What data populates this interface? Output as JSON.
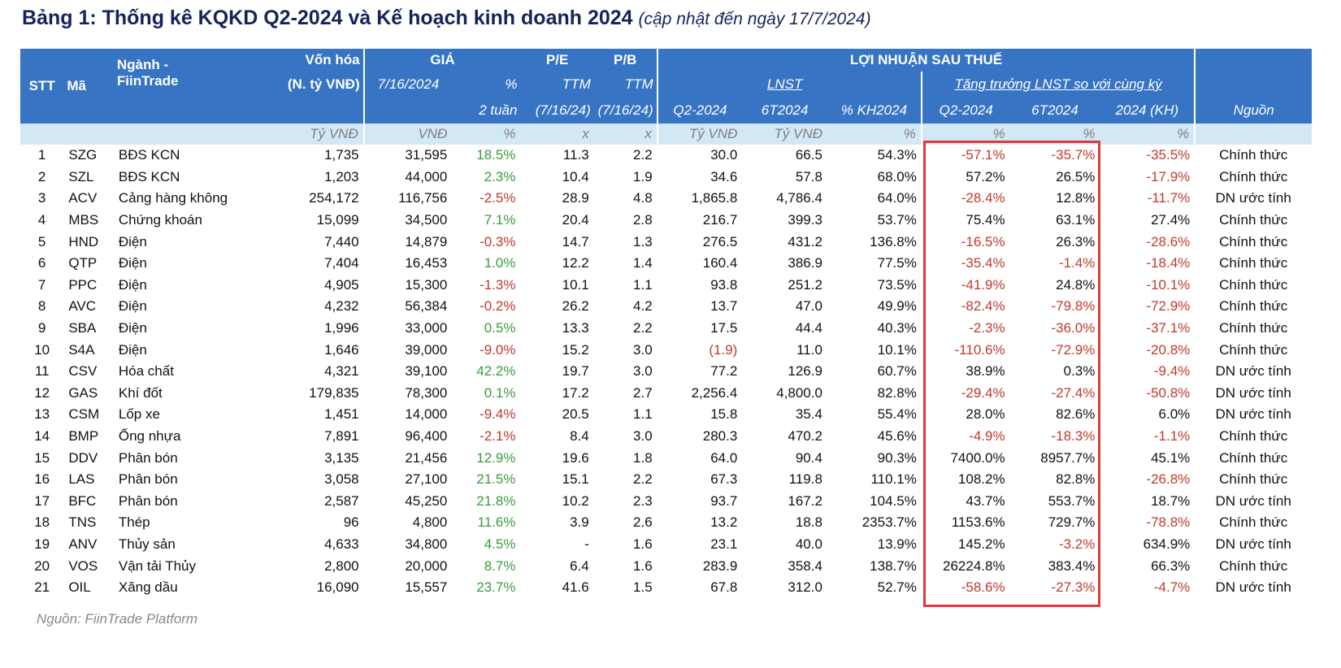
{
  "title": {
    "main": "Bảng 1: Thống kê KQKD Q2-2024 và Kế hoạch kinh doanh 2024",
    "sub": "(cập nhật đến ngày 17/7/2024)"
  },
  "headers": {
    "stt": "STT",
    "ma": "Mã",
    "nganh": "Ngành -",
    "nganh2": "FiinTrade",
    "vonhoa": "Vốn hóa",
    "vonhoa2": "(N. tỷ VNĐ)",
    "gia": "GIÁ",
    "gia_date": "7/16/2024",
    "gia_pct": "%",
    "gia_pct2": "2 tuần",
    "pe": "P/E",
    "pe_ttm": "TTM",
    "pe_date": "(7/16/24)",
    "pb": "P/B",
    "pb_ttm": "TTM",
    "pb_date": "(7/16/24)",
    "lnst_group": "LỢI NHUẬN SAU THUẾ",
    "lnst": "LNST",
    "growth": "Tăng trưởng LNST so với cùng kỳ",
    "q2": "Q2-2024",
    "h1": "6T2024",
    "kh": "% KH2024",
    "g_q2": "Q2-2024",
    "g_h1": "6T2024",
    "g_kh": "2024 (KH)",
    "nguon": "Nguồn"
  },
  "units": [
    "Tỷ VNĐ",
    "VNĐ",
    "%",
    "x",
    "x",
    "Tỷ VNĐ",
    "Tỷ VNĐ",
    "%",
    "%",
    "%",
    "%"
  ],
  "rows": [
    {
      "stt": "1",
      "ma": "SZG",
      "nganh": "BĐS KCN",
      "vonhoa": "1,735",
      "gia": "31,595",
      "pct": "18.5%",
      "pe": "11.3",
      "pb": "2.2",
      "q2": "30.0",
      "h1": "66.5",
      "kh": "54.3%",
      "gq2": "-57.1%",
      "gh1": "-35.7%",
      "gkh": "-35.5%",
      "nguon": "Chính thức"
    },
    {
      "stt": "2",
      "ma": "SZL",
      "nganh": "BĐS KCN",
      "vonhoa": "1,203",
      "gia": "44,000",
      "pct": "2.3%",
      "pe": "10.4",
      "pb": "1.9",
      "q2": "34.6",
      "h1": "57.8",
      "kh": "68.0%",
      "gq2": "57.2%",
      "gh1": "26.5%",
      "gkh": "-17.9%",
      "nguon": "Chính thức"
    },
    {
      "stt": "3",
      "ma": "ACV",
      "nganh": "Cảng hàng không",
      "vonhoa": "254,172",
      "gia": "116,756",
      "pct": "-2.5%",
      "pe": "28.9",
      "pb": "4.8",
      "q2": "1,865.8",
      "h1": "4,786.4",
      "kh": "64.0%",
      "gq2": "-28.4%",
      "gh1": "12.8%",
      "gkh": "-11.7%",
      "nguon": "DN ước tính"
    },
    {
      "stt": "4",
      "ma": "MBS",
      "nganh": "Chứng khoán",
      "vonhoa": "15,099",
      "gia": "34,500",
      "pct": "7.1%",
      "pe": "20.4",
      "pb": "2.8",
      "q2": "216.7",
      "h1": "399.3",
      "kh": "53.7%",
      "gq2": "75.4%",
      "gh1": "63.1%",
      "gkh": "27.4%",
      "nguon": "Chính thức"
    },
    {
      "stt": "5",
      "ma": "HND",
      "nganh": "Điện",
      "vonhoa": "7,440",
      "gia": "14,879",
      "pct": "-0.3%",
      "pe": "14.7",
      "pb": "1.3",
      "q2": "276.5",
      "h1": "431.2",
      "kh": "136.8%",
      "gq2": "-16.5%",
      "gh1": "26.3%",
      "gkh": "-28.6%",
      "nguon": "Chính thức"
    },
    {
      "stt": "6",
      "ma": "QTP",
      "nganh": "Điện",
      "vonhoa": "7,404",
      "gia": "16,453",
      "pct": "1.0%",
      "pe": "12.2",
      "pb": "1.4",
      "q2": "160.4",
      "h1": "386.9",
      "kh": "77.5%",
      "gq2": "-35.4%",
      "gh1": "-1.4%",
      "gkh": "-18.4%",
      "nguon": "Chính thức"
    },
    {
      "stt": "7",
      "ma": "PPC",
      "nganh": "Điện",
      "vonhoa": "4,905",
      "gia": "15,300",
      "pct": "-1.3%",
      "pe": "10.1",
      "pb": "1.1",
      "q2": "93.8",
      "h1": "251.2",
      "kh": "73.5%",
      "gq2": "-41.9%",
      "gh1": "24.8%",
      "gkh": "-10.1%",
      "nguon": "Chính thức"
    },
    {
      "stt": "8",
      "ma": "AVC",
      "nganh": "Điện",
      "vonhoa": "4,232",
      "gia": "56,384",
      "pct": "-0.2%",
      "pe": "26.2",
      "pb": "4.2",
      "q2": "13.7",
      "h1": "47.0",
      "kh": "49.9%",
      "gq2": "-82.4%",
      "gh1": "-79.8%",
      "gkh": "-72.9%",
      "nguon": "Chính thức"
    },
    {
      "stt": "9",
      "ma": "SBA",
      "nganh": "Điện",
      "vonhoa": "1,996",
      "gia": "33,000",
      "pct": "0.5%",
      "pe": "13.3",
      "pb": "2.2",
      "q2": "17.5",
      "h1": "44.4",
      "kh": "40.3%",
      "gq2": "-2.3%",
      "gh1": "-36.0%",
      "gkh": "-37.1%",
      "nguon": "Chính thức"
    },
    {
      "stt": "10",
      "ma": "S4A",
      "nganh": "Điện",
      "vonhoa": "1,646",
      "gia": "39,000",
      "pct": "-9.0%",
      "pe": "15.2",
      "pb": "3.0",
      "q2": "(1.9)",
      "h1": "11.0",
      "kh": "10.1%",
      "gq2": "-110.6%",
      "gh1": "-72.9%",
      "gkh": "-20.8%",
      "nguon": "Chính thức"
    },
    {
      "stt": "11",
      "ma": "CSV",
      "nganh": "Hóa chất",
      "vonhoa": "4,321",
      "gia": "39,100",
      "pct": "42.2%",
      "pe": "19.7",
      "pb": "3.0",
      "q2": "77.2",
      "h1": "126.9",
      "kh": "60.7%",
      "gq2": "38.9%",
      "gh1": "0.3%",
      "gkh": "-9.4%",
      "nguon": "DN ước tính"
    },
    {
      "stt": "12",
      "ma": "GAS",
      "nganh": "Khí đốt",
      "vonhoa": "179,835",
      "gia": "78,300",
      "pct": "0.1%",
      "pe": "17.2",
      "pb": "2.7",
      "q2": "2,256.4",
      "h1": "4,800.0",
      "kh": "82.8%",
      "gq2": "-29.4%",
      "gh1": "-27.4%",
      "gkh": "-50.8%",
      "nguon": "DN ước tính"
    },
    {
      "stt": "13",
      "ma": "CSM",
      "nganh": "Lốp xe",
      "vonhoa": "1,451",
      "gia": "14,000",
      "pct": "-9.4%",
      "pe": "20.5",
      "pb": "1.1",
      "q2": "15.8",
      "h1": "35.4",
      "kh": "55.4%",
      "gq2": "28.0%",
      "gh1": "82.6%",
      "gkh": "6.0%",
      "nguon": "DN ước tính"
    },
    {
      "stt": "14",
      "ma": "BMP",
      "nganh": "Ống nhựa",
      "vonhoa": "7,891",
      "gia": "96,400",
      "pct": "-2.1%",
      "pe": "8.4",
      "pb": "3.0",
      "q2": "280.3",
      "h1": "470.2",
      "kh": "45.6%",
      "gq2": "-4.9%",
      "gh1": "-18.3%",
      "gkh": "-1.1%",
      "nguon": "Chính thức"
    },
    {
      "stt": "15",
      "ma": "DDV",
      "nganh": "Phân bón",
      "vonhoa": "3,135",
      "gia": "21,456",
      "pct": "12.9%",
      "pe": "19.6",
      "pb": "1.8",
      "q2": "64.0",
      "h1": "90.4",
      "kh": "90.3%",
      "gq2": "7400.0%",
      "gh1": "8957.7%",
      "gkh": "45.1%",
      "nguon": "Chính thức"
    },
    {
      "stt": "16",
      "ma": "LAS",
      "nganh": "Phân bón",
      "vonhoa": "3,058",
      "gia": "27,100",
      "pct": "21.5%",
      "pe": "15.1",
      "pb": "2.2",
      "q2": "67.3",
      "h1": "119.8",
      "kh": "110.1%",
      "gq2": "108.2%",
      "gh1": "82.8%",
      "gkh": "-26.8%",
      "nguon": "Chính thức"
    },
    {
      "stt": "17",
      "ma": "BFC",
      "nganh": "Phân bón",
      "vonhoa": "2,587",
      "gia": "45,250",
      "pct": "21.8%",
      "pe": "10.2",
      "pb": "2.3",
      "q2": "93.7",
      "h1": "167.2",
      "kh": "104.5%",
      "gq2": "43.7%",
      "gh1": "553.7%",
      "gkh": "18.7%",
      "nguon": "DN ước tính"
    },
    {
      "stt": "18",
      "ma": "TNS",
      "nganh": "Thép",
      "vonhoa": "96",
      "gia": "4,800",
      "pct": "11.6%",
      "pe": "3.9",
      "pb": "2.6",
      "q2": "13.2",
      "h1": "18.8",
      "kh": "2353.7%",
      "gq2": "1153.6%",
      "gh1": "729.7%",
      "gkh": "-78.8%",
      "nguon": "Chính thức"
    },
    {
      "stt": "19",
      "ma": "ANV",
      "nganh": "Thủy sản",
      "vonhoa": "4,633",
      "gia": "34,800",
      "pct": "4.5%",
      "pe": "-",
      "pb": "1.6",
      "q2": "23.1",
      "h1": "40.0",
      "kh": "13.9%",
      "gq2": "145.2%",
      "gh1": "-3.2%",
      "gkh": "634.9%",
      "nguon": "DN ước tính"
    },
    {
      "stt": "20",
      "ma": "VOS",
      "nganh": "Vận tải Thủy",
      "vonhoa": "2,800",
      "gia": "20,000",
      "pct": "8.7%",
      "pe": "6.4",
      "pb": "1.6",
      "q2": "283.9",
      "h1": "358.4",
      "kh": "138.7%",
      "gq2": "26224.8%",
      "gh1": "383.4%",
      "gkh": "66.3%",
      "nguon": "Chính thức"
    },
    {
      "stt": "21",
      "ma": "OIL",
      "nganh": "Xăng dầu",
      "vonhoa": "16,090",
      "gia": "15,557",
      "pct": "23.7%",
      "pe": "41.6",
      "pb": "1.5",
      "q2": "67.8",
      "h1": "312.0",
      "kh": "52.7%",
      "gq2": "-58.6%",
      "gh1": "-27.3%",
      "gkh": "-4.7%",
      "nguon": "DN ước tính"
    }
  ],
  "source_note": "Nguồn: FiinTrade Platform",
  "colors": {
    "header_bg": "#3774c4",
    "units_bg": "#d3e8f5",
    "positive": "#3b9b3b",
    "negative": "#c0392b",
    "highlight": "#e03a3a",
    "title": "#16235b"
  }
}
